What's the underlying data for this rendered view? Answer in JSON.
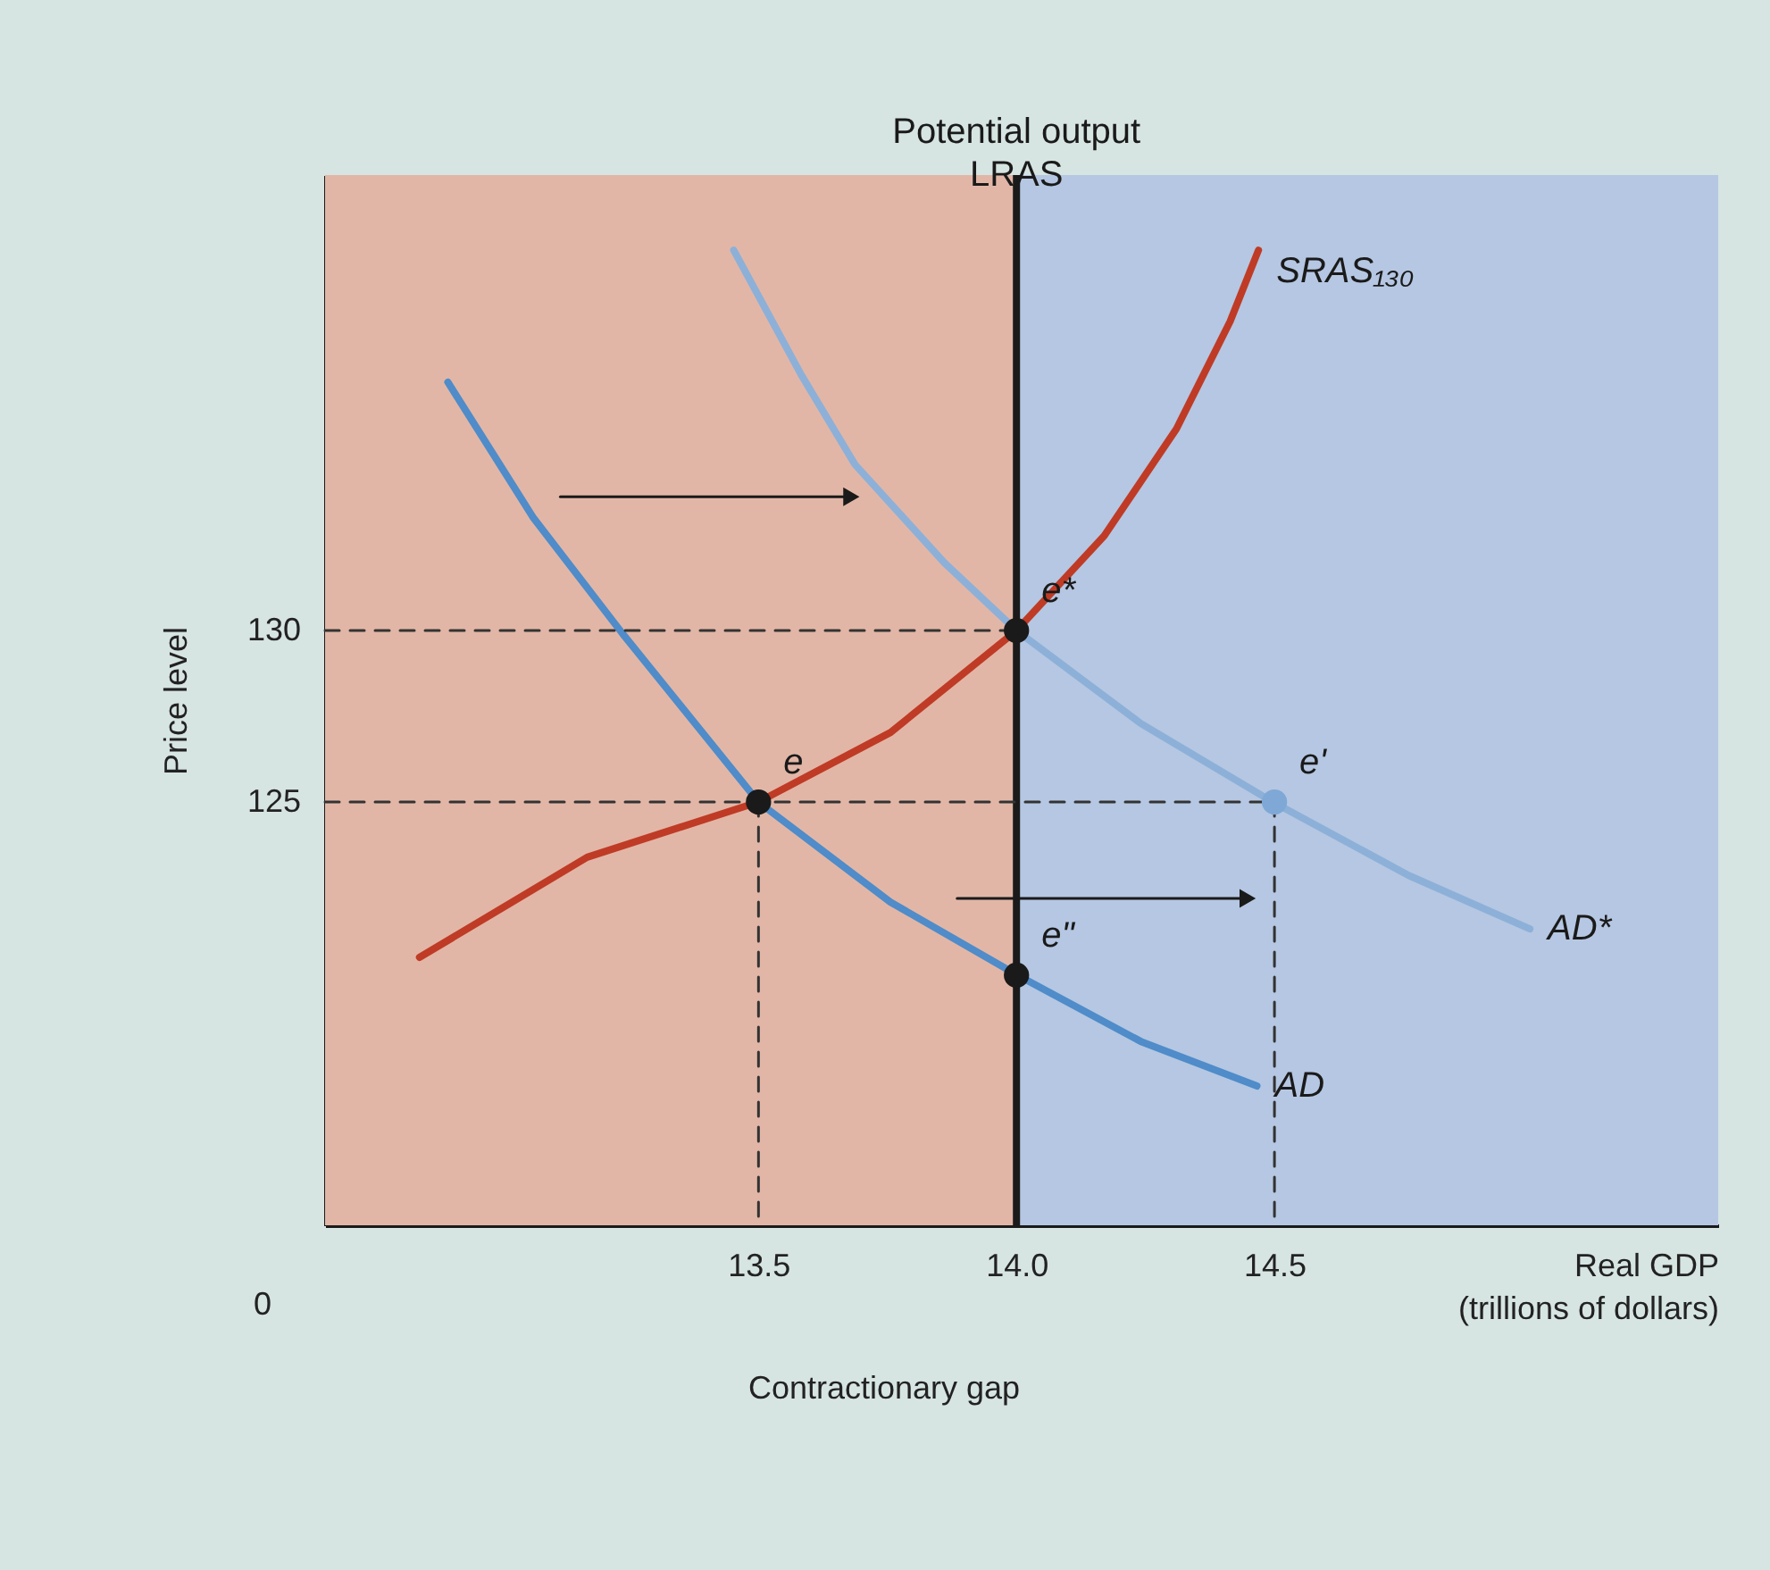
{
  "chart_data": {
    "type": "line",
    "xlabel": "Real GDP\n(trillions of dollars)",
    "ylabel": "Price level",
    "xlim": [
      12.66,
      15.36
    ],
    "ylim": [
      112.66,
      143.28
    ],
    "xticks": [
      13.5,
      {
        "value": 14.0,
        "label": "14.0"
      },
      14.5
    ],
    "yticks": [
      125,
      130
    ],
    "grid": false,
    "bands": [
      {
        "axis": "x",
        "from": 12.66,
        "to": 14.0,
        "color": "#e2b6a6"
      },
      {
        "axis": "x",
        "from": 14.0,
        "to": 15.36,
        "color": "#b5c7e2"
      }
    ],
    "ref_lines": [
      {
        "axis": "x",
        "value": 14.0,
        "label": "Potential output\nLRAS",
        "color": "#1a1a1a"
      }
    ],
    "series": [
      {
        "name": "AD",
        "color": "#4f8cc9",
        "x": [
          12.898,
          13.064,
          13.237,
          13.5,
          13.756,
          14.002,
          14.241,
          14.466
        ],
        "values": [
          137.24,
          133.28,
          129.9,
          125.0,
          122.08,
          119.95,
          118.02,
          116.72
        ]
      },
      {
        "name": "AD*",
        "color": "#8db0d8",
        "x": [
          13.452,
          13.583,
          13.687,
          13.86,
          14.0,
          14.241,
          14.497,
          14.76,
          14.995
        ],
        "values": [
          141.09,
          137.45,
          134.84,
          131.98,
          130.0,
          127.29,
          125.0,
          122.86,
          121.3
        ]
      },
      {
        "name": "SRAS₁₃₀",
        "color": "#bf3b26",
        "x": [
          12.843,
          13.168,
          13.5,
          13.756,
          14.0,
          14.17,
          14.31,
          14.414,
          14.469
        ],
        "values": [
          120.47,
          123.39,
          125.0,
          127.03,
          130.0,
          132.76,
          135.88,
          139.01,
          141.09
        ]
      },
      {
        "type": "line",
        "color": "#333333",
        "line_style": "dashed",
        "x": [
          12.66,
          14.0
        ],
        "values": [
          130,
          130
        ]
      },
      {
        "type": "line",
        "color": "#333333",
        "line_style": "dashed",
        "x": [
          12.66,
          14.5
        ],
        "values": [
          125,
          125
        ]
      },
      {
        "type": "line",
        "color": "#333333",
        "line_style": "dashed",
        "x": [
          13.5,
          13.5
        ],
        "values": [
          125,
          112.66
        ]
      },
      {
        "type": "line",
        "color": "#333333",
        "line_style": "dashed",
        "x": [
          14.5,
          14.5
        ],
        "values": [
          125,
          112.66
        ]
      },
      {
        "type": "line",
        "color": "#1a1a1a",
        "marker": "triangle",
        "x": [
          13.116,
          13.68
        ],
        "values": [
          133.9,
          133.9
        ]
      },
      {
        "type": "line",
        "color": "#1a1a1a",
        "marker": "triangle",
        "x": [
          13.885,
          14.448
        ],
        "values": [
          122.19,
          122.19
        ]
      },
      {
        "type": "scatter",
        "color": "#1a1a1a",
        "x": [
          13.5,
          14.0,
          14.0
        ],
        "values": [
          125,
          130,
          119.95
        ]
      },
      {
        "type": "scatter",
        "color": "#7fa8d6",
        "x": [
          14.5
        ],
        "values": [
          125
        ]
      }
    ],
    "annotations": [
      {
        "text": "e",
        "x": 13.5,
        "y": 125
      },
      {
        "text": "e*",
        "x": 14.0,
        "y": 130
      },
      {
        "text": "e'",
        "x": 14.5,
        "y": 125
      },
      {
        "text": "e\"",
        "x": 14.0,
        "y": 119.95
      },
      "0",
      "Contractionary gap"
    ]
  }
}
